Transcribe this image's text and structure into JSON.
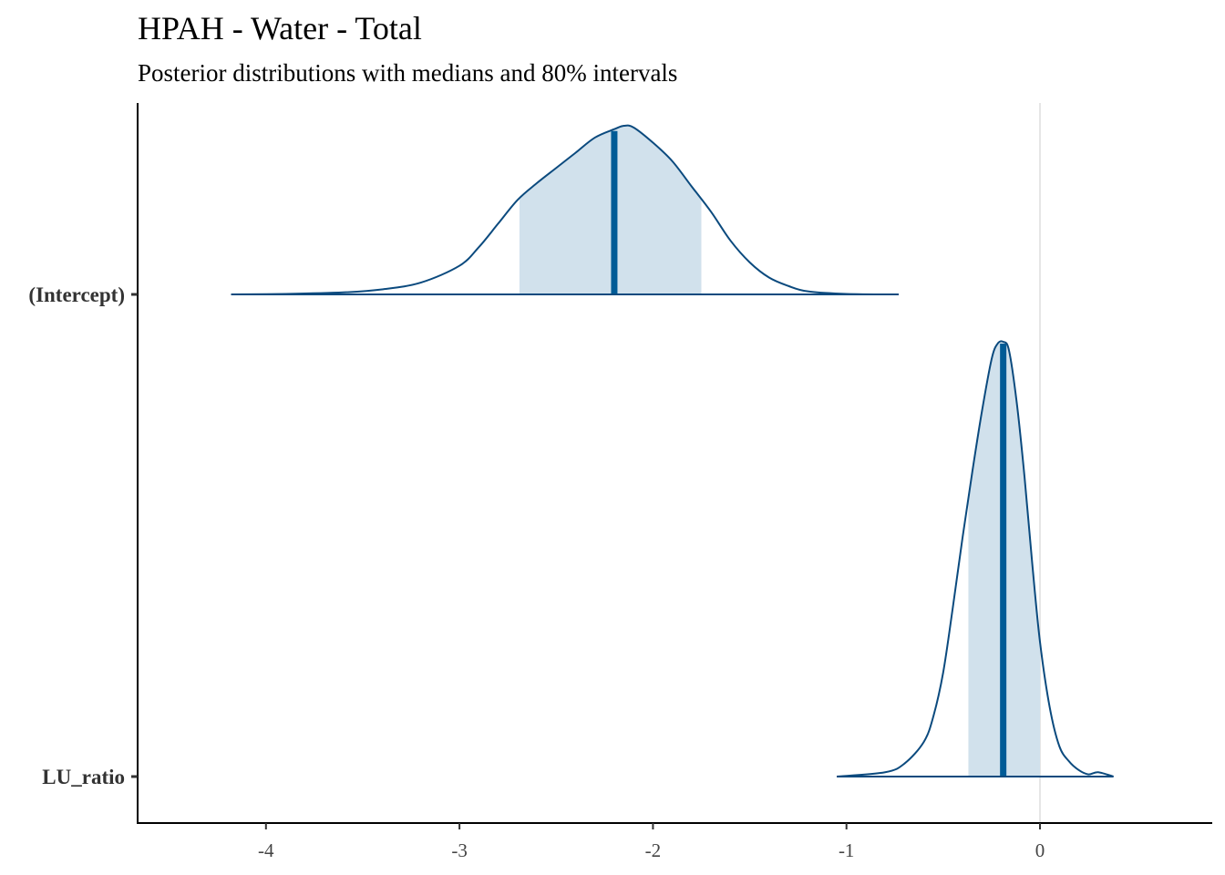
{
  "chart_data": {
    "type": "area",
    "title": "HPAH - Water - Total",
    "subtitle": "Posterior distributions with medians and 80% intervals",
    "xlabel": "",
    "ylabel": "",
    "xlim": [
      -4.67,
      0.85
    ],
    "x_ticks": [
      -4,
      -3,
      -2,
      -1,
      0
    ],
    "x_tick_labels": [
      "-4",
      "-3",
      "-2",
      "-1",
      "0"
    ],
    "reference_line_x": 0,
    "grid": false,
    "colors": {
      "outline": "#0b4a7e",
      "interval_fill": "#d1e1ec",
      "median_line": "#005b96",
      "reference_line": "#dddddd",
      "axis": "#000000"
    },
    "series": [
      {
        "name": "(Intercept)",
        "median": -2.2,
        "interval_80": [
          -2.69,
          -1.75
        ],
        "density_x": [
          -4.18,
          -3.9,
          -3.6,
          -3.4,
          -3.2,
          -3.0,
          -2.9,
          -2.8,
          -2.7,
          -2.6,
          -2.5,
          -2.4,
          -2.3,
          -2.2,
          -2.15,
          -2.1,
          -2.0,
          -1.9,
          -1.8,
          -1.7,
          -1.6,
          -1.5,
          -1.4,
          -1.3,
          -1.2,
          -1.0,
          -0.73
        ],
        "density_y": [
          0.0,
          0.003,
          0.012,
          0.03,
          0.07,
          0.17,
          0.28,
          0.42,
          0.56,
          0.66,
          0.75,
          0.84,
          0.93,
          0.98,
          1.0,
          0.99,
          0.9,
          0.79,
          0.64,
          0.49,
          0.32,
          0.19,
          0.1,
          0.05,
          0.018,
          0.003,
          0.0
        ]
      },
      {
        "name": "LU_ratio",
        "median": -0.19,
        "interval_80": [
          -0.37,
          0.0
        ],
        "density_x": [
          -1.05,
          -0.8,
          -0.7,
          -0.6,
          -0.55,
          -0.5,
          -0.45,
          -0.4,
          -0.35,
          -0.3,
          -0.25,
          -0.22,
          -0.19,
          -0.16,
          -0.12,
          -0.08,
          -0.04,
          0.0,
          0.05,
          0.1,
          0.15,
          0.2,
          0.25,
          0.3,
          0.38
        ],
        "density_y": [
          0.0,
          0.01,
          0.03,
          0.08,
          0.14,
          0.24,
          0.39,
          0.55,
          0.7,
          0.84,
          0.96,
          0.995,
          1.0,
          0.98,
          0.86,
          0.69,
          0.49,
          0.31,
          0.16,
          0.07,
          0.035,
          0.015,
          0.005,
          0.01,
          0.0
        ]
      }
    ]
  }
}
